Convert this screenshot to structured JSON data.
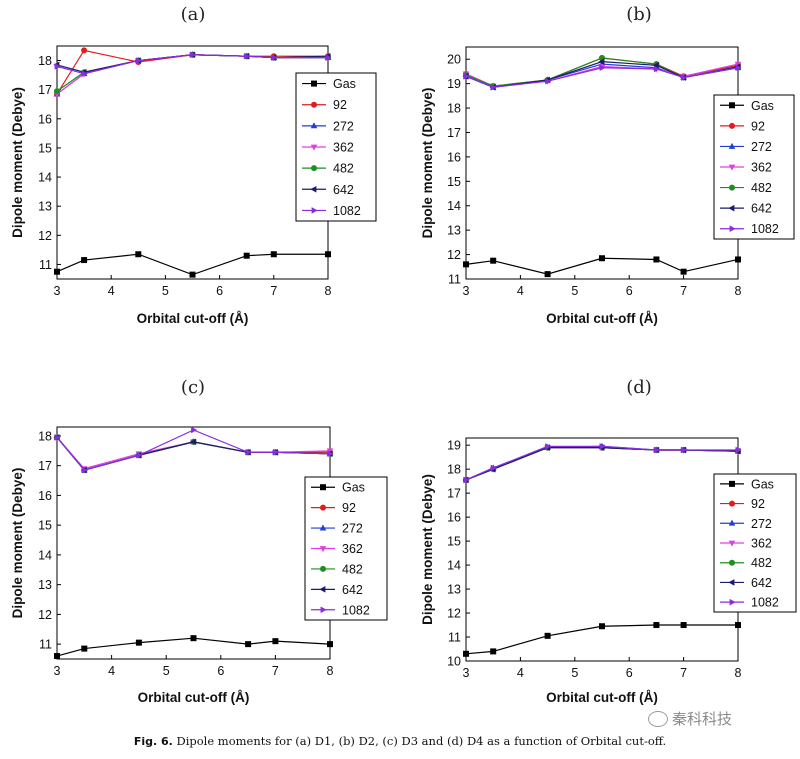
{
  "caption": {
    "label": "Fig. 6.",
    "text": "Dipole moments for (a) D1, (b) D2, (c) D3 and (d) D4 as a function of Orbital cut-off."
  },
  "watermark": {
    "text": "秦科科技",
    "icon": "wechat-icon"
  },
  "legend_entries": [
    "Gas",
    "92",
    "272",
    "362",
    "482",
    "642",
    "1082"
  ],
  "colors": {
    "Gas": "#000000",
    "92": "#e41a1c",
    "272": "#1f3fd6",
    "362": "#e040e0",
    "482": "#1e8f1e",
    "642": "#1c1c6e",
    "1082": "#8a2be2"
  },
  "chart_data": [
    {
      "panel": "(a)",
      "type": "line",
      "xlabel": "Orbital cut-off (Å)",
      "ylabel": "Dipole moment (Debye)",
      "xlim": [
        3,
        8
      ],
      "ylim": [
        10.5,
        18.5
      ],
      "xticks": [
        3,
        4,
        5,
        6,
        7,
        8
      ],
      "yticks": [
        11,
        12,
        13,
        14,
        15,
        16,
        17,
        18
      ],
      "legend_position": "right",
      "x": [
        3,
        3.5,
        4.5,
        5.5,
        6.5,
        7,
        8
      ],
      "series": [
        {
          "name": "Gas",
          "values": [
            10.75,
            11.15,
            11.35,
            10.65,
            11.3,
            11.35,
            11.35
          ]
        },
        {
          "name": "92",
          "values": [
            16.85,
            18.35,
            17.95,
            18.2,
            18.15,
            18.15,
            18.15
          ]
        },
        {
          "name": "272",
          "values": [
            16.85,
            17.55,
            18.0,
            18.2,
            18.15,
            18.1,
            18.1
          ]
        },
        {
          "name": "362",
          "values": [
            16.85,
            17.55,
            18.0,
            18.2,
            18.15,
            18.1,
            18.1
          ]
        },
        {
          "name": "482",
          "values": [
            16.95,
            17.6,
            18.0,
            18.2,
            18.15,
            18.1,
            18.1
          ]
        },
        {
          "name": "642",
          "values": [
            17.85,
            17.6,
            18.0,
            18.2,
            18.15,
            18.1,
            18.15
          ]
        },
        {
          "name": "1082",
          "values": [
            17.8,
            17.55,
            18.0,
            18.2,
            18.15,
            18.1,
            18.1
          ]
        }
      ]
    },
    {
      "panel": "(b)",
      "type": "line",
      "xlabel": "Orbital cut-off (Å)",
      "ylabel": "Dipole moment (Debye)",
      "xlim": [
        3,
        8
      ],
      "ylim": [
        11,
        20.5
      ],
      "xticks": [
        3,
        4,
        5,
        6,
        7,
        8
      ],
      "yticks": [
        11,
        12,
        13,
        14,
        15,
        16,
        17,
        18,
        19,
        20
      ],
      "legend_position": "right",
      "x": [
        3,
        3.5,
        4.5,
        5.5,
        6.5,
        7,
        8
      ],
      "series": [
        {
          "name": "Gas",
          "values": [
            11.6,
            11.75,
            11.2,
            11.85,
            11.8,
            11.3,
            11.8
          ]
        },
        {
          "name": "92",
          "values": [
            19.4,
            18.9,
            19.15,
            20.05,
            19.8,
            19.3,
            19.75
          ]
        },
        {
          "name": "272",
          "values": [
            19.3,
            18.85,
            19.15,
            19.8,
            19.65,
            19.25,
            19.65
          ]
        },
        {
          "name": "362",
          "values": [
            19.4,
            18.9,
            19.1,
            19.7,
            19.6,
            19.3,
            19.8
          ]
        },
        {
          "name": "482",
          "values": [
            19.35,
            18.9,
            19.15,
            20.05,
            19.8,
            19.25,
            19.65
          ]
        },
        {
          "name": "642",
          "values": [
            19.3,
            18.85,
            19.15,
            19.9,
            19.75,
            19.25,
            19.7
          ]
        },
        {
          "name": "1082",
          "values": [
            19.3,
            18.85,
            19.1,
            19.65,
            19.6,
            19.25,
            19.65
          ]
        }
      ]
    },
    {
      "panel": "(c)",
      "type": "line",
      "xlabel": "Orbital cut-off (Å)",
      "ylabel": "Dipole moment (Debye)",
      "xlim": [
        3,
        8
      ],
      "ylim": [
        10.5,
        18.3
      ],
      "xticks": [
        3,
        4,
        5,
        6,
        7,
        8
      ],
      "yticks": [
        11,
        12,
        13,
        14,
        15,
        16,
        17,
        18
      ],
      "legend_position": "right",
      "x": [
        3,
        3.5,
        4.5,
        5.5,
        6.5,
        7,
        8
      ],
      "series": [
        {
          "name": "Gas",
          "values": [
            10.6,
            10.85,
            11.05,
            11.2,
            11.0,
            11.1,
            11.0
          ]
        },
        {
          "name": "92",
          "values": [
            17.95,
            16.85,
            17.35,
            17.8,
            17.45,
            17.45,
            17.45
          ]
        },
        {
          "name": "272",
          "values": [
            17.95,
            16.85,
            17.35,
            17.8,
            17.45,
            17.45,
            17.4
          ]
        },
        {
          "name": "362",
          "values": [
            17.95,
            16.9,
            17.4,
            17.8,
            17.45,
            17.45,
            17.5
          ]
        },
        {
          "name": "482",
          "values": [
            17.95,
            16.85,
            17.35,
            17.8,
            17.45,
            17.45,
            17.4
          ]
        },
        {
          "name": "642",
          "values": [
            17.95,
            16.85,
            17.35,
            17.8,
            17.45,
            17.45,
            17.4
          ]
        },
        {
          "name": "1082",
          "values": [
            17.95,
            16.85,
            17.35,
            18.2,
            17.45,
            17.45,
            17.4
          ]
        }
      ]
    },
    {
      "panel": "(d)",
      "type": "line",
      "xlabel": "Orbital cut-off (Å)",
      "ylabel": "Dipole moment (Debye)",
      "xlim": [
        3,
        8
      ],
      "ylim": [
        10,
        19.3
      ],
      "xticks": [
        3,
        4,
        5,
        6,
        7,
        8
      ],
      "yticks": [
        10,
        11,
        12,
        13,
        14,
        15,
        16,
        17,
        18,
        19
      ],
      "legend_position": "right",
      "x": [
        3,
        3.5,
        4.5,
        5.5,
        6.5,
        7,
        8
      ],
      "series": [
        {
          "name": "Gas",
          "values": [
            10.3,
            10.4,
            11.05,
            11.45,
            11.5,
            11.5,
            11.5
          ]
        },
        {
          "name": "92",
          "values": [
            17.55,
            18.0,
            18.9,
            18.9,
            18.8,
            18.8,
            18.75
          ]
        },
        {
          "name": "272",
          "values": [
            17.55,
            18.05,
            18.9,
            18.95,
            18.8,
            18.8,
            18.75
          ]
        },
        {
          "name": "362",
          "values": [
            17.55,
            18.0,
            18.9,
            18.9,
            18.8,
            18.8,
            18.75
          ]
        },
        {
          "name": "482",
          "values": [
            17.55,
            18.0,
            18.9,
            18.9,
            18.8,
            18.8,
            18.75
          ]
        },
        {
          "name": "642",
          "values": [
            17.55,
            18.0,
            18.9,
            18.9,
            18.8,
            18.8,
            18.75
          ]
        },
        {
          "name": "1082",
          "values": [
            17.55,
            18.05,
            18.95,
            18.95,
            18.8,
            18.8,
            18.8
          ]
        }
      ]
    }
  ]
}
